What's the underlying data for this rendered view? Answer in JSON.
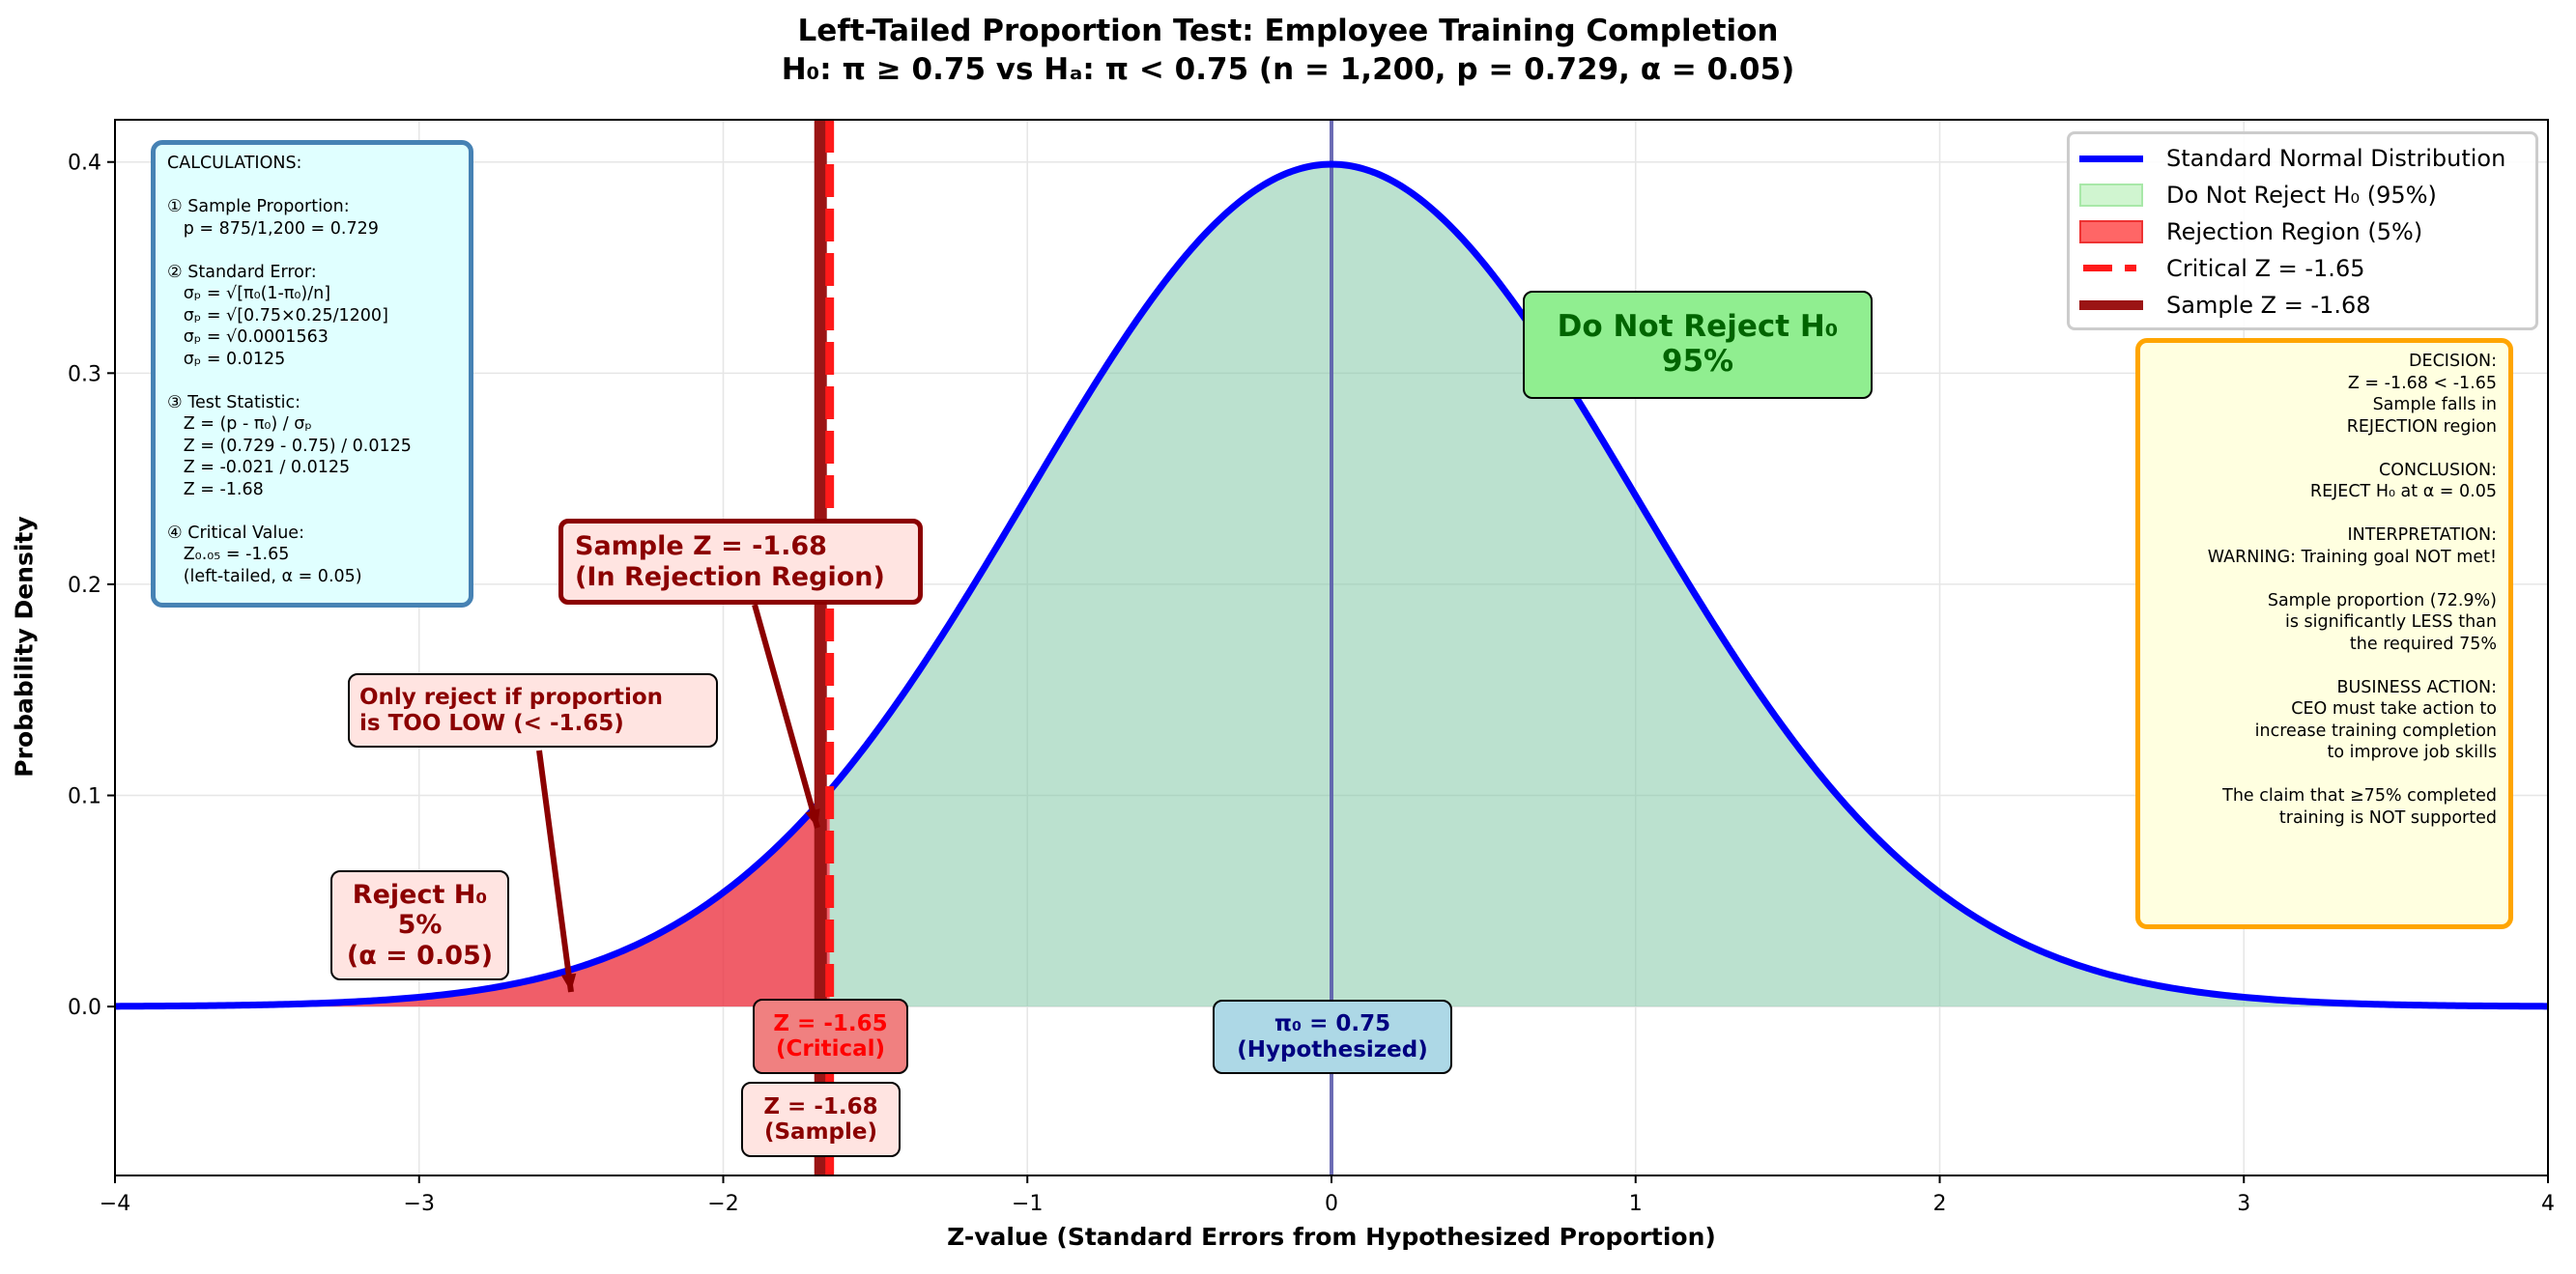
{
  "chart_data": {
    "type": "area",
    "title": "Left-Tailed Proportion Test: Employee Training Completion",
    "subtitle": "H₀: π ≥ 0.75  vs  Hₐ: π < 0.75  (n = 1,200, p = 0.729, α = 0.05)",
    "xlabel": "Z-value (Standard Errors from Hypothesized Proportion)",
    "ylabel": "Probability Density",
    "xlim": [
      -4,
      4
    ],
    "ylim": [
      -0.08,
      0.42
    ],
    "xticks": [
      "−4",
      "−3",
      "−2",
      "−1",
      "0",
      "1",
      "2",
      "3",
      "4"
    ],
    "xtick_values": [
      -4,
      -3,
      -2,
      -1,
      0,
      1,
      2,
      3,
      4
    ],
    "yticks": [
      "0.0",
      "0.1",
      "0.2",
      "0.3",
      "0.4"
    ],
    "ytick_values": [
      0,
      0.1,
      0.2,
      0.3,
      0.4
    ],
    "grid": true,
    "critical_z": -1.65,
    "sample_z": -1.68,
    "hypothesized_z": 0,
    "series": [
      {
        "name": "Standard Normal Distribution",
        "function": "normal_pdf",
        "mean": 0,
        "sd": 1
      }
    ],
    "legend": {
      "placement": "top-right",
      "items": [
        "Standard Normal Distribution",
        "Do Not Reject H₀ (95%)",
        "Rejection Region (5%)",
        "Critical Z = -1.65",
        "Sample Z = -1.68"
      ]
    },
    "colors": {
      "curve": "#0000ff",
      "accept": "rgba(120,195,160,0.5)",
      "reject": "rgba(235,40,55,0.75)",
      "critical": "#ff1a1a",
      "sample": "#9b1515",
      "center": "#5555aa"
    }
  },
  "calculations": "CALCULATIONS:\n\n① Sample Proportion:\n   p = 875/1,200 = 0.729\n\n② Standard Error:\n   σₚ = √[π₀(1-π₀)/n]\n   σₚ = √[0.75×0.25/1200]\n   σₚ = √0.0001563\n   σₚ = 0.0125\n\n③ Test Statistic:\n   Z = (p - π₀) / σₚ\n   Z = (0.729 - 0.75) / 0.0125\n   Z = -0.021 / 0.0125\n   Z = -1.68\n\n④ Critical Value:\n   Z₀.₀₅ = -1.65\n   (left-tailed, α = 0.05)",
  "decision": "DECISION:\nZ = -1.68 < -1.65\nSample falls in\nREJECTION region\n\nCONCLUSION:\nREJECT H₀ at α = 0.05\n\nINTERPRETATION:\nWARNING: Training goal NOT met!\n\nSample proportion (72.9%)\nis significantly LESS than\nthe required 75%\n\nBUSINESS ACTION:\nCEO must take action to\nincrease training completion\nto improve job skills\n\nThe claim that ≥75% completed\ntraining is NOT supported",
  "annotations": {
    "accept": "Do Not Reject H₀\n95%",
    "sample": "Sample Z = -1.68\n(In Rejection Region)",
    "only_reject": "Only reject if proportion\nis TOO LOW (< -1.65)",
    "reject": "Reject H₀\n5%\n(α = 0.05)",
    "critical_label": "Z = -1.65\n(Critical)",
    "sample_label": "Z = -1.68\n(Sample)",
    "hyp_label": "π₀ = 0.75\n(Hypothesized)"
  }
}
